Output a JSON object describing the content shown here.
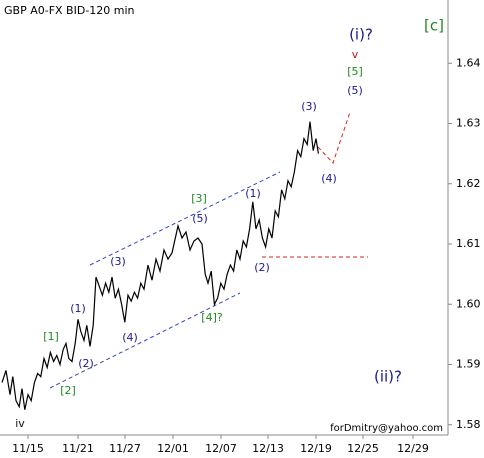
{
  "chart_data": {
    "type": "line",
    "title": "GBP A0-FX BID-120 min",
    "watermark": "forDmitry@yahoo.com",
    "series": [
      {
        "name": "GBP A0-FX BID",
        "color": "#000000",
        "x": [
          0.5,
          1.5,
          2.5,
          3.2,
          4,
          4.8,
          5.5,
          6.2,
          7,
          7.8,
          8.6,
          9.4,
          10.2,
          11,
          11.8,
          12.6,
          13.4,
          14.2,
          15,
          15.8,
          16.5,
          17.2,
          18,
          18.8,
          19.5,
          20.2,
          21,
          21.7,
          22.5,
          23.3,
          24,
          24.8,
          25.6,
          26.4,
          27.2,
          28,
          28.8,
          29.6,
          30.4,
          31.2,
          32,
          32.8,
          33.6,
          34.4,
          35.2,
          36,
          37,
          38,
          39,
          40,
          41,
          42,
          43,
          44,
          44.5,
          45.5,
          46.5,
          47.5,
          48.5,
          49.5,
          50.5,
          51.3,
          52,
          52.8,
          53.6,
          54.4,
          55.2,
          56,
          56.8,
          57.6,
          58.4,
          59.2,
          60,
          60.8,
          61.6,
          62.4,
          63.2,
          64,
          64.8,
          65.6,
          66.4,
          67.2,
          68,
          68.8,
          69.6,
          70.4,
          71.2,
          72,
          72.8,
          73.6,
          74.4,
          75.2,
          76,
          76.8,
          77.5,
          78.3,
          79,
          79.6
        ],
        "values": [
          1.587,
          1.589,
          1.585,
          1.588,
          1.584,
          1.583,
          1.586,
          1.5825,
          1.585,
          1.584,
          1.587,
          1.5885,
          1.588,
          1.591,
          1.5895,
          1.592,
          1.5905,
          1.5915,
          1.59,
          1.5925,
          1.5935,
          1.591,
          1.5905,
          1.5935,
          1.5975,
          1.5955,
          1.594,
          1.5965,
          1.593,
          1.5965,
          1.6045,
          1.603,
          1.6015,
          1.6035,
          1.602,
          1.6045,
          1.601,
          1.6025,
          1.6,
          1.597,
          1.6015,
          1.6005,
          1.602,
          1.601,
          1.6035,
          1.6025,
          1.6065,
          1.604,
          1.6075,
          1.6055,
          1.609,
          1.6075,
          1.6085,
          1.6115,
          1.613,
          1.611,
          1.612,
          1.609,
          1.6105,
          1.611,
          1.61,
          1.605,
          1.6035,
          1.6055,
          1.6,
          1.601,
          1.6035,
          1.6025,
          1.605,
          1.6065,
          1.6055,
          1.609,
          1.6075,
          1.6105,
          1.6095,
          1.6125,
          1.617,
          1.6125,
          1.614,
          1.611,
          1.6095,
          1.6125,
          1.611,
          1.6155,
          1.6145,
          1.619,
          1.6175,
          1.6205,
          1.6195,
          1.622,
          1.6255,
          1.6245,
          1.6275,
          1.6265,
          1.6303,
          1.6255,
          1.6275,
          1.625
        ]
      }
    ],
    "xlim": [
      0,
      112
    ],
    "xticks": [
      {
        "value": 7,
        "label": "11/15"
      },
      {
        "value": 19.5,
        "label": "11/21"
      },
      {
        "value": 31.25,
        "label": "11/27"
      },
      {
        "value": 43.25,
        "label": "12/01"
      },
      {
        "value": 55.25,
        "label": "12/07"
      },
      {
        "value": 67,
        "label": "12/13"
      },
      {
        "value": 79,
        "label": "12/19"
      },
      {
        "value": 90.75,
        "label": "12/25"
      },
      {
        "value": 103.25,
        "label": "12/29"
      }
    ],
    "ylim": [
      1.5783,
      1.6505
    ],
    "yticks": [
      1.58,
      1.59,
      {
        "value": 1.6,
        "label": "1.60"
      },
      1.61,
      1.62,
      1.63,
      1.64
    ],
    "annotations": [
      "[c]",
      "(i)?",
      "v",
      "[5]",
      "(5)",
      "(3)",
      "(4)",
      "(1)",
      "(2)",
      "[3]",
      "(5)",
      "(3)",
      "[4]?",
      "(4)",
      "(1)",
      "(2)",
      "[1]",
      "[2]",
      "iv",
      "(ii)?"
    ]
  }
}
